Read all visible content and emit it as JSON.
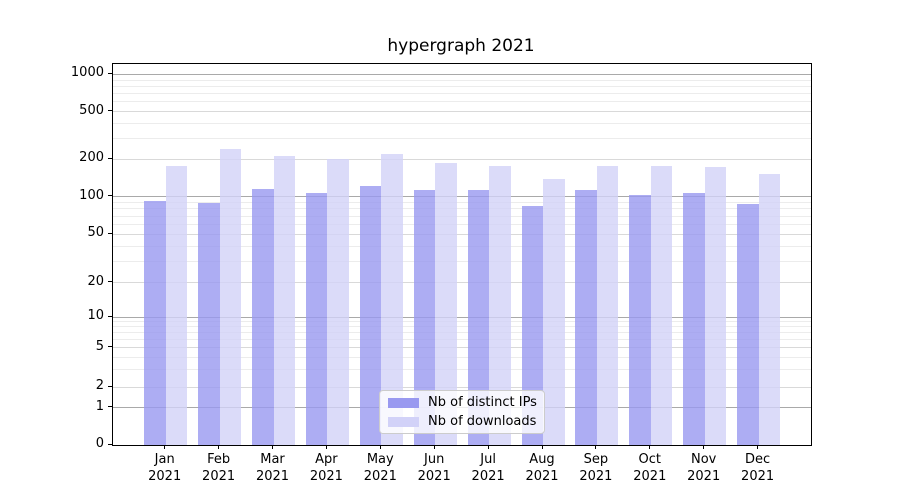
{
  "chart_data": {
    "type": "bar",
    "title": "hypergraph 2021",
    "xlabel": "",
    "ylabel": "",
    "year_label": "2021",
    "categories": [
      "Jan",
      "Feb",
      "Mar",
      "Apr",
      "May",
      "Jun",
      "Jul",
      "Aug",
      "Sep",
      "Oct",
      "Nov",
      "Dec"
    ],
    "series": [
      {
        "name": "Nb of distinct IPs",
        "color": "#9999f0",
        "values": [
          92,
          89,
          115,
          108,
          122,
          113,
          113,
          85,
          114,
          103,
          107,
          87
        ]
      },
      {
        "name": "Nb of downloads",
        "color": "#d2d2f8",
        "values": [
          176,
          245,
          215,
          200,
          220,
          187,
          178,
          138,
          177,
          176,
          173,
          153
        ]
      }
    ],
    "bar_alpha": 0.8,
    "yscale": "symlog",
    "yticks": [
      1000,
      500,
      200,
      100,
      50,
      20,
      10,
      5,
      2,
      1,
      0
    ],
    "ylim": [
      0,
      1000
    ],
    "grid": "both",
    "legend_position": "lower center"
  },
  "style": {
    "background": "#ffffff",
    "grid_major_color": "#a9a9a9",
    "grid_mid_color": "#d9d9d9",
    "grid_minor_color": "#ececec",
    "spine_color": "#000000",
    "legend_border_color": "#cccccc"
  }
}
